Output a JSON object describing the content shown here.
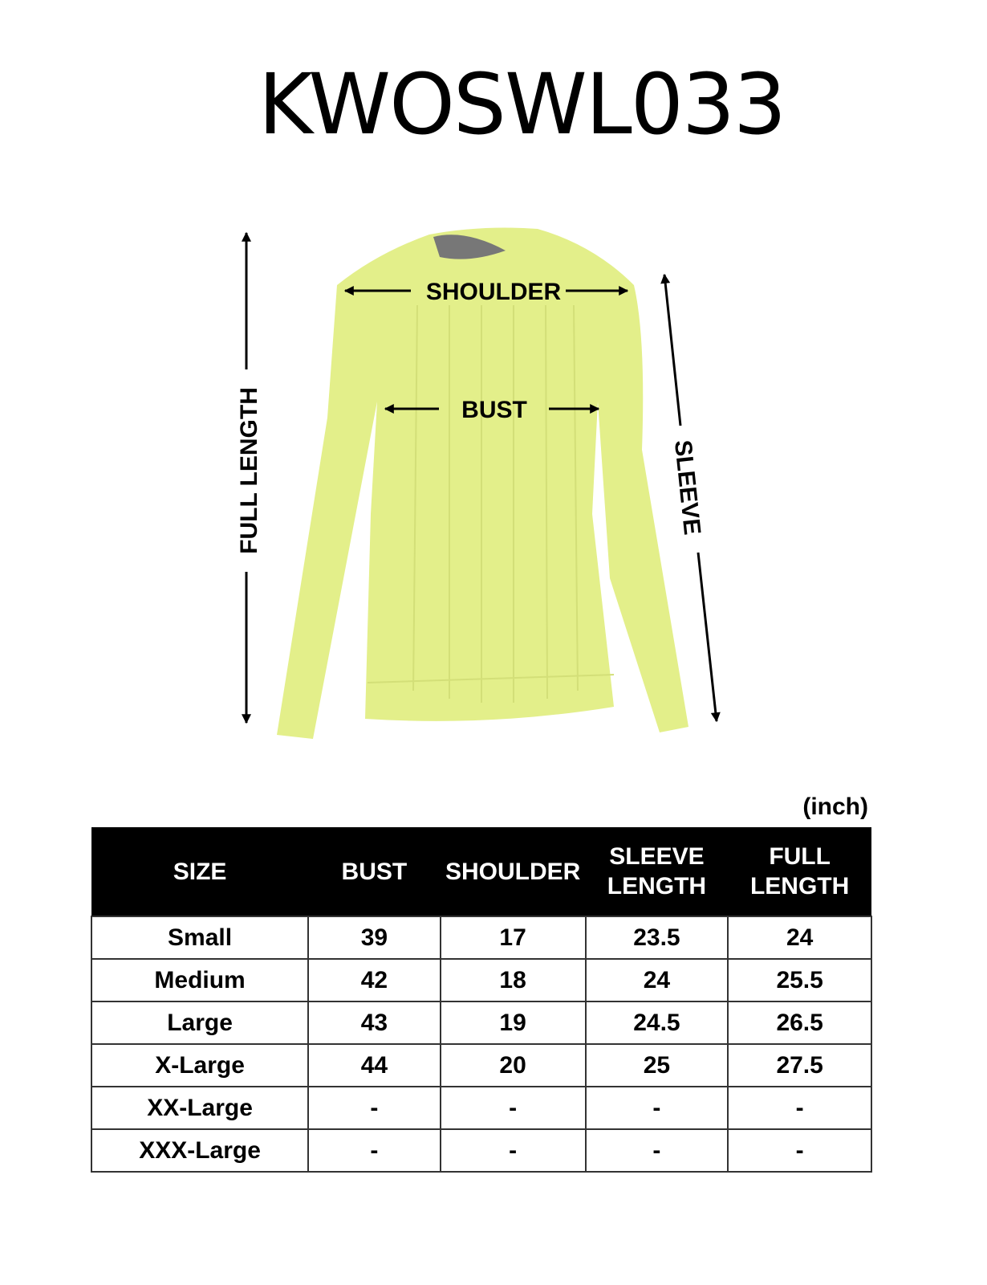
{
  "title": "KWOSWL033",
  "diagram": {
    "garment_color": "#e3ef8a",
    "labels": {
      "shoulder": "SHOULDER",
      "bust": "BUST",
      "full_length": "FULL LENGTH",
      "sleeve": "SLEEVE"
    }
  },
  "unit": "(inch)",
  "table": {
    "headers": [
      "SIZE",
      "BUST",
      "SHOULDER",
      "SLEEVE LENGTH",
      "FULL LENGTH"
    ],
    "header_lines": [
      [
        "SIZE"
      ],
      [
        "BUST"
      ],
      [
        "SHOULDER"
      ],
      [
        "SLEEVE",
        "LENGTH"
      ],
      [
        "FULL",
        "LENGTH"
      ]
    ],
    "rows": [
      [
        "Small",
        "39",
        "17",
        "23.5",
        "24"
      ],
      [
        "Medium",
        "42",
        "18",
        "24",
        "25.5"
      ],
      [
        "Large",
        "43",
        "19",
        "24.5",
        "26.5"
      ],
      [
        "X-Large",
        "44",
        "20",
        "25",
        "27.5"
      ],
      [
        "XX-Large",
        "-",
        "-",
        "-",
        "-"
      ],
      [
        "XXX-Large",
        "-",
        "-",
        "-",
        "-"
      ]
    ]
  }
}
